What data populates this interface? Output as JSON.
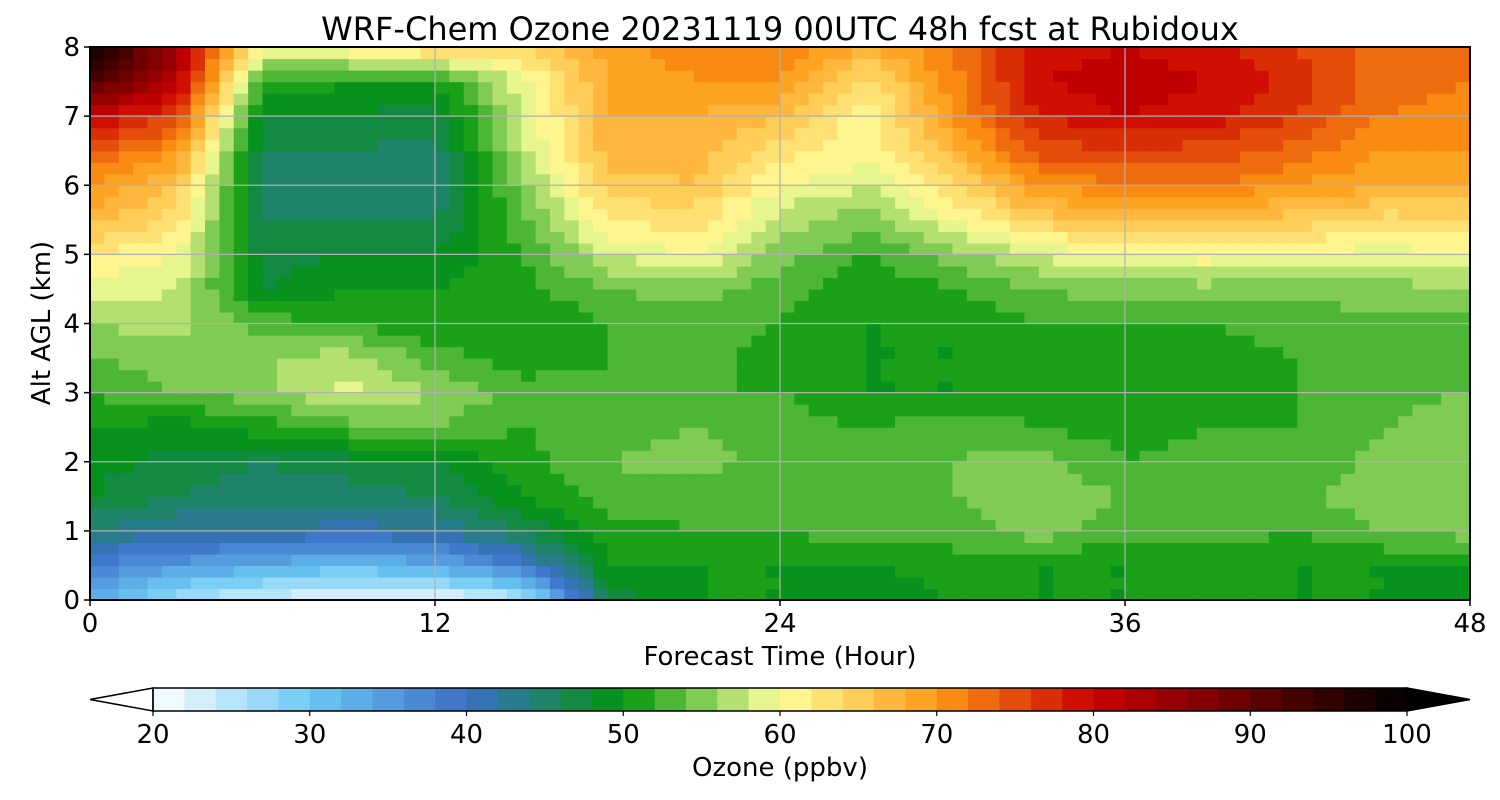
{
  "chart_data": {
    "type": "heatmap",
    "title": "WRF-Chem Ozone  20231119 00UTC 48h fcst at Rubidoux",
    "xlabel": "Forecast Time (Hour)",
    "ylabel": "Alt AGL (km)",
    "xlim": [
      0,
      48
    ],
    "ylim": [
      0,
      8
    ],
    "xticks": [
      0,
      12,
      24,
      36,
      48
    ],
    "yticks": [
      0,
      1,
      2,
      3,
      4,
      5,
      6,
      7,
      8
    ],
    "grid": true,
    "x": [
      0,
      3,
      6,
      9,
      12,
      15,
      18,
      21,
      24,
      27,
      30,
      33,
      36,
      39,
      42,
      45,
      48
    ],
    "y": [
      0,
      0.5,
      1,
      1.5,
      2,
      2.5,
      3,
      3.5,
      4,
      4.5,
      5,
      5.5,
      6,
      6.5,
      7,
      7.5,
      8
    ],
    "z": [
      [
        33,
        26,
        23,
        21,
        21,
        24,
        46,
        50,
        50,
        48,
        50,
        50,
        50,
        50,
        50,
        50,
        48
      ],
      [
        38,
        35,
        33,
        31,
        33,
        38,
        50,
        50,
        50,
        50,
        51,
        50,
        50,
        51,
        50,
        50,
        50
      ],
      [
        44,
        42,
        42,
        41,
        42,
        46,
        51,
        52,
        52,
        53,
        53,
        55,
        53,
        53,
        52,
        54,
        55
      ],
      [
        48,
        46,
        45,
        45,
        46,
        50,
        53,
        53,
        52,
        54,
        54,
        55,
        54,
        53,
        53,
        56,
        56
      ],
      [
        49,
        47,
        46,
        47,
        48,
        51,
        54,
        55,
        53,
        52,
        54,
        55,
        52,
        53,
        52,
        55,
        56
      ],
      [
        50,
        49,
        51,
        53,
        54,
        52,
        53,
        54,
        53,
        52,
        53,
        52,
        51,
        52,
        52,
        54,
        56
      ],
      [
        52,
        54,
        55,
        59,
        56,
        53,
        52,
        52,
        52,
        50,
        50,
        51,
        50,
        51,
        52,
        53,
        54
      ],
      [
        54,
        55,
        56,
        57,
        53,
        51,
        52,
        53,
        51,
        50,
        50,
        51,
        51,
        51,
        52,
        52,
        53
      ],
      [
        56,
        57,
        53,
        52,
        50,
        50,
        52,
        53,
        52,
        50,
        50,
        52,
        52,
        52,
        53,
        53,
        53
      ],
      [
        59,
        58,
        48,
        50,
        50,
        51,
        54,
        55,
        53,
        50,
        52,
        54,
        55,
        55,
        55,
        55,
        56
      ],
      [
        62,
        60,
        47,
        48,
        48,
        52,
        58,
        60,
        55,
        52,
        55,
        58,
        61,
        61,
        60,
        59,
        60
      ],
      [
        67,
        63,
        46,
        46,
        46,
        53,
        62,
        63,
        57,
        55,
        60,
        65,
        66,
        66,
        65,
        63,
        64
      ],
      [
        70,
        66,
        45,
        46,
        44,
        55,
        65,
        66,
        60,
        58,
        63,
        70,
        72,
        72,
        70,
        68,
        68
      ],
      [
        74,
        70,
        46,
        46,
        45,
        57,
        67,
        67,
        63,
        61,
        67,
        75,
        76,
        75,
        73,
        70,
        70
      ],
      [
        80,
        76,
        48,
        48,
        47,
        58,
        68,
        68,
        66,
        60,
        70,
        78,
        80,
        79,
        76,
        72,
        71
      ],
      [
        92,
        82,
        52,
        50,
        50,
        59,
        68,
        70,
        70,
        63,
        71,
        80,
        81,
        80,
        77,
        73,
        72
      ],
      [
        100,
        84,
        60,
        62,
        65,
        64,
        69,
        71,
        72,
        68,
        72,
        79,
        80,
        79,
        76,
        73,
        72
      ]
    ],
    "colorbar": {
      "label": "Ozone  (ppbv)",
      "min": 20,
      "max": 100,
      "ticks": [
        20,
        30,
        40,
        50,
        60,
        70,
        80,
        90,
        100
      ],
      "extend": "both",
      "colors": [
        "#ffffff",
        "#6cc8f4",
        "#3b6fc6",
        "#00960a",
        "#ffff9c",
        "#ff9a14",
        "#c80000",
        "#000000"
      ],
      "stops": [
        20,
        30,
        40,
        50,
        60,
        70,
        80,
        100
      ]
    }
  }
}
